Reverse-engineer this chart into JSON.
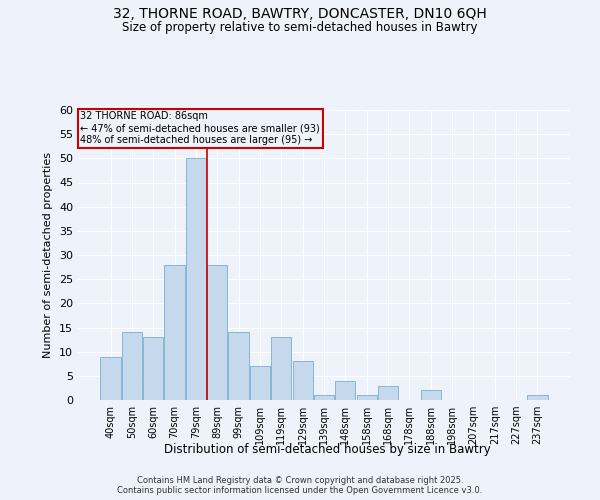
{
  "title1": "32, THORNE ROAD, BAWTRY, DONCASTER, DN10 6QH",
  "title2": "Size of property relative to semi-detached houses in Bawtry",
  "xlabel": "Distribution of semi-detached houses by size in Bawtry",
  "ylabel": "Number of semi-detached properties",
  "bar_labels": [
    "40sqm",
    "50sqm",
    "60sqm",
    "70sqm",
    "79sqm",
    "89sqm",
    "99sqm",
    "109sqm",
    "119sqm",
    "129sqm",
    "139sqm",
    "148sqm",
    "158sqm",
    "168sqm",
    "178sqm",
    "188sqm",
    "198sqm",
    "207sqm",
    "217sqm",
    "227sqm",
    "237sqm"
  ],
  "bar_values": [
    9,
    14,
    13,
    28,
    50,
    28,
    14,
    7,
    13,
    8,
    1,
    4,
    1,
    3,
    0,
    2,
    0,
    0,
    0,
    0,
    1
  ],
  "bar_color": "#c6d9ec",
  "bar_edge_color": "#7aafd4",
  "vline_x": 4.5,
  "vline_color": "#cc0000",
  "annotation_title": "32 THORNE ROAD: 86sqm",
  "annotation_line1": "← 47% of semi-detached houses are smaller (93)",
  "annotation_line2": "48% of semi-detached houses are larger (95) →",
  "annotation_box_color": "#cc0000",
  "ylim": [
    0,
    60
  ],
  "yticks": [
    0,
    5,
    10,
    15,
    20,
    25,
    30,
    35,
    40,
    45,
    50,
    55,
    60
  ],
  "footer1": "Contains HM Land Registry data © Crown copyright and database right 2025.",
  "footer2": "Contains public sector information licensed under the Open Government Licence v3.0.",
  "bg_color": "#eef2fa",
  "grid_color": "#ffffff"
}
